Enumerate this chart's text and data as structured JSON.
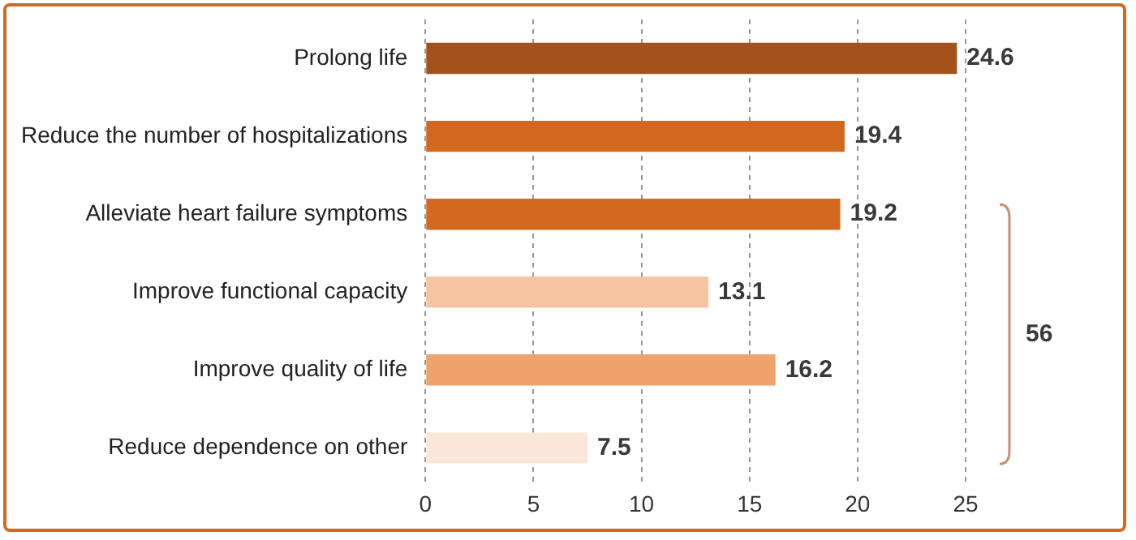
{
  "chart_data": {
    "type": "bar",
    "orientation": "horizontal",
    "categories": [
      "Prolong life",
      "Reduce the number of hospitalizations",
      "Alleviate heart failure symptoms",
      "Improve functional capacity",
      "Improve quality of life",
      "Reduce dependence on other"
    ],
    "values": [
      24.6,
      19.4,
      19.2,
      13.1,
      16.2,
      7.5
    ],
    "colors": [
      "#a3521c",
      "#d2691e",
      "#d2691e",
      "#f5c4a0",
      "#eea36c",
      "#fbe7da"
    ],
    "xlim": [
      0,
      25
    ],
    "xticks": [
      0,
      5,
      10,
      15,
      20,
      25
    ],
    "grid": "x",
    "data_labels": true,
    "annotations": [
      "56"
    ]
  }
}
